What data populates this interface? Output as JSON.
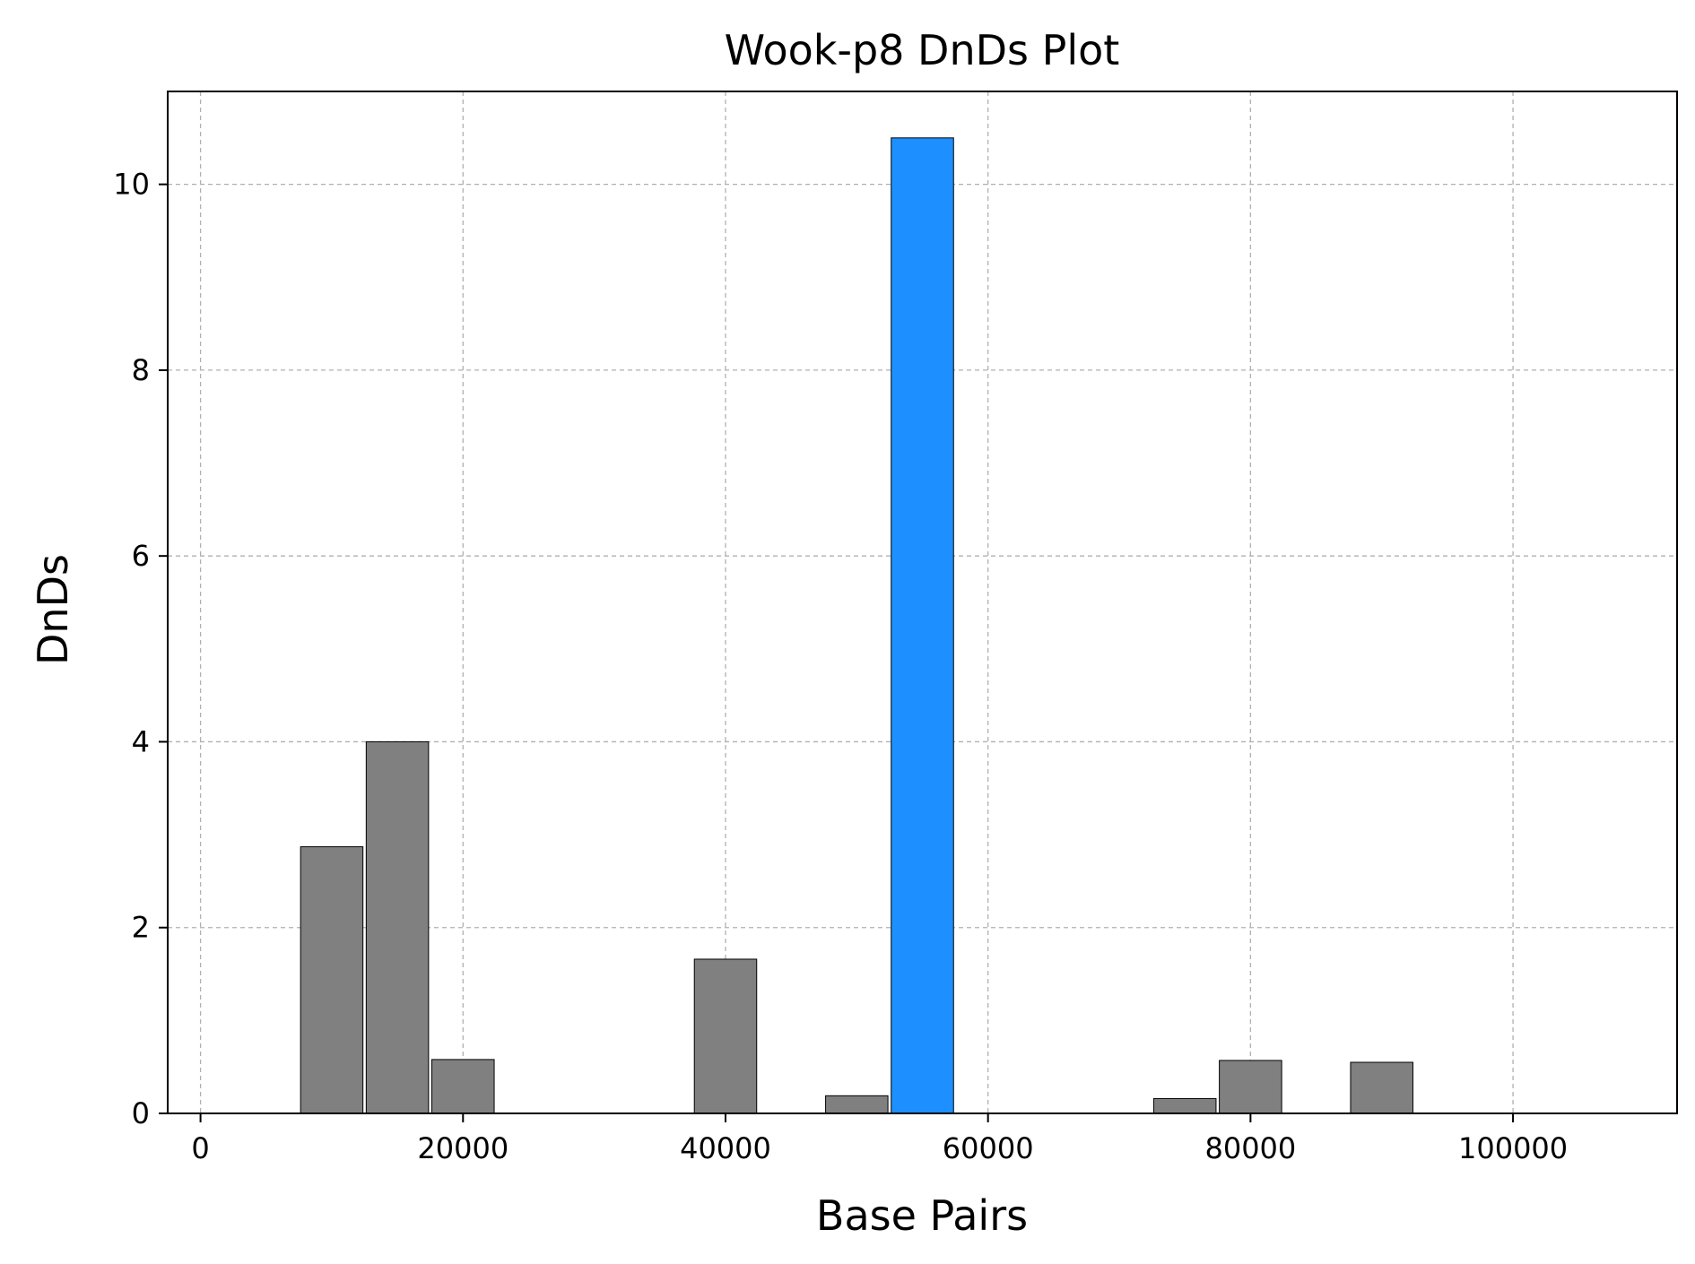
{
  "chart_data": {
    "type": "bar",
    "title": "Wook-p8 DnDs Plot",
    "xlabel": "Base Pairs",
    "ylabel": "DnDs",
    "xlim": [
      -2500,
      112500
    ],
    "ylim": [
      0,
      11
    ],
    "x_ticks": [
      0,
      20000,
      40000,
      60000,
      80000,
      100000
    ],
    "y_ticks": [
      0,
      2,
      4,
      6,
      8,
      10
    ],
    "grid": true,
    "bar_width": 4750,
    "default_color": "#808080",
    "highlight_color": "#1e8fff",
    "edge_color": "#000000",
    "x": [
      10000,
      15000,
      20000,
      40000,
      50000,
      55000,
      75000,
      80000,
      90000
    ],
    "values": [
      2.87,
      4.0,
      0.58,
      1.66,
      0.19,
      10.5,
      0.16,
      0.57,
      0.55
    ],
    "colors": [
      "#808080",
      "#808080",
      "#808080",
      "#808080",
      "#808080",
      "#1e8fff",
      "#808080",
      "#808080",
      "#808080"
    ]
  }
}
